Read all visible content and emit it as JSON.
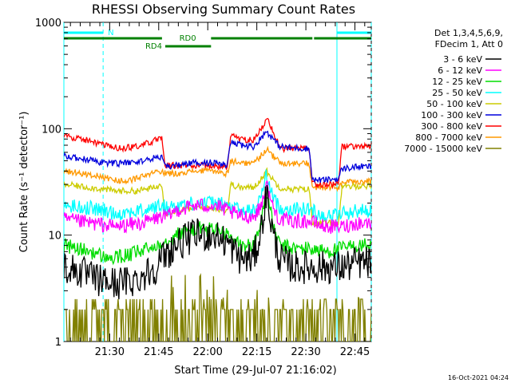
{
  "chart_data": {
    "type": "line",
    "title": "RHESSI Observing Summary Count Rates",
    "xlabel": "Start Time (29-Jul-07 21:16:02)",
    "ylabel": "Count Rate (s⁻¹ detector⁻¹)",
    "yscale": "log",
    "ylim": [
      1,
      1000
    ],
    "y_ticks": [
      {
        "value": 1,
        "label": "1"
      },
      {
        "value": 10,
        "label": "10"
      },
      {
        "value": 100,
        "label": "100"
      },
      {
        "value": 1000,
        "label": "1000"
      }
    ],
    "xlim_minutes": [
      0,
      94
    ],
    "x_ticks": [
      {
        "value": 14,
        "label": "21:30"
      },
      {
        "value": 29,
        "label": "21:45"
      },
      {
        "value": 44,
        "label": "22:00"
      },
      {
        "value": 59,
        "label": "22:15"
      },
      {
        "value": 74,
        "label": "22:30"
      },
      {
        "value": 89,
        "label": "22:45"
      }
    ],
    "legend_header": [
      "Det 1,3,4,5,6,9,",
      "FDecim 1, Att 0"
    ],
    "series": [
      {
        "name": "3 - 6 keV",
        "color": "#000000",
        "points": [
          [
            0,
            5
          ],
          [
            5,
            4.5
          ],
          [
            10,
            3.8
          ],
          [
            16,
            3.5
          ],
          [
            22,
            3.8
          ],
          [
            28,
            5
          ],
          [
            30,
            6
          ],
          [
            34,
            8
          ],
          [
            40,
            10
          ],
          [
            46,
            10
          ],
          [
            50,
            8.5
          ],
          [
            54,
            6
          ],
          [
            58,
            6
          ],
          [
            60,
            10
          ],
          [
            62,
            25
          ],
          [
            64,
            10
          ],
          [
            66,
            6
          ],
          [
            70,
            5
          ],
          [
            75,
            5
          ],
          [
            80,
            5
          ],
          [
            85,
            5
          ],
          [
            90,
            5.5
          ],
          [
            94,
            5.5
          ]
        ]
      },
      {
        "name": "6 - 12 keV",
        "color": "#ff00ff",
        "points": [
          [
            0,
            14
          ],
          [
            8,
            13
          ],
          [
            16,
            12
          ],
          [
            24,
            13
          ],
          [
            30,
            15
          ],
          [
            32,
            15
          ],
          [
            34,
            17
          ],
          [
            40,
            19
          ],
          [
            46,
            19
          ],
          [
            50,
            17
          ],
          [
            54,
            15
          ],
          [
            58,
            15
          ],
          [
            60,
            18
          ],
          [
            62,
            30
          ],
          [
            64,
            18
          ],
          [
            66,
            14
          ],
          [
            70,
            13.5
          ],
          [
            75,
            13.5
          ],
          [
            80,
            12
          ],
          [
            85,
            12
          ],
          [
            90,
            13
          ],
          [
            94,
            13
          ]
        ]
      },
      {
        "name": "12 - 25 keV",
        "color": "#00dd00",
        "points": [
          [
            0,
            8
          ],
          [
            8,
            7
          ],
          [
            14,
            6
          ],
          [
            20,
            6.5
          ],
          [
            26,
            7.5
          ],
          [
            30,
            8.5
          ],
          [
            34,
            10
          ],
          [
            40,
            11.5
          ],
          [
            46,
            11.5
          ],
          [
            50,
            10
          ],
          [
            54,
            8
          ],
          [
            58,
            8
          ],
          [
            60,
            12
          ],
          [
            62,
            27
          ],
          [
            64,
            12
          ],
          [
            66,
            8
          ],
          [
            70,
            7.5
          ],
          [
            75,
            7.5
          ],
          [
            80,
            7
          ],
          [
            85,
            7.5
          ],
          [
            90,
            8
          ],
          [
            94,
            8
          ]
        ]
      },
      {
        "name": "25 - 50 keV",
        "color": "#00ffff",
        "points": [
          [
            0,
            19
          ],
          [
            8,
            18
          ],
          [
            16,
            16
          ],
          [
            24,
            17
          ],
          [
            30,
            19
          ],
          [
            32,
            18
          ],
          [
            34,
            19
          ],
          [
            40,
            20
          ],
          [
            46,
            20
          ],
          [
            50,
            19
          ],
          [
            54,
            17
          ],
          [
            58,
            17
          ],
          [
            60,
            22
          ],
          [
            62,
            37
          ],
          [
            64,
            22
          ],
          [
            66,
            18
          ],
          [
            70,
            17.5
          ],
          [
            75,
            17.5
          ],
          [
            80,
            15
          ],
          [
            85,
            16
          ],
          [
            90,
            17
          ],
          [
            94,
            17
          ]
        ]
      },
      {
        "name": "50 - 100 keV",
        "color": "#cccc00",
        "points": [
          [
            0,
            30
          ],
          [
            8,
            28
          ],
          [
            16,
            26
          ],
          [
            22,
            26
          ],
          [
            28,
            28
          ],
          [
            30,
            30
          ],
          [
            31,
            16
          ],
          [
            34,
            17
          ],
          [
            40,
            18
          ],
          [
            46,
            18
          ],
          [
            50,
            17
          ],
          [
            51,
            30
          ],
          [
            54,
            28
          ],
          [
            58,
            28
          ],
          [
            60,
            33
          ],
          [
            62,
            40
          ],
          [
            64,
            33
          ],
          [
            66,
            28
          ],
          [
            70,
            27
          ],
          [
            75,
            27
          ],
          [
            76,
            13
          ],
          [
            80,
            13
          ],
          [
            84,
            13
          ],
          [
            85,
            28
          ],
          [
            90,
            29
          ],
          [
            94,
            29
          ]
        ]
      },
      {
        "name": "100 - 300 keV",
        "color": "#0000dd",
        "points": [
          [
            0,
            55
          ],
          [
            6,
            52
          ],
          [
            12,
            48
          ],
          [
            18,
            47
          ],
          [
            24,
            50
          ],
          [
            30,
            55
          ],
          [
            31,
            43
          ],
          [
            34,
            45
          ],
          [
            40,
            48
          ],
          [
            46,
            48
          ],
          [
            50,
            45
          ],
          [
            51,
            75
          ],
          [
            54,
            70
          ],
          [
            58,
            68
          ],
          [
            60,
            80
          ],
          [
            62,
            95
          ],
          [
            64,
            80
          ],
          [
            66,
            68
          ],
          [
            70,
            66
          ],
          [
            75,
            65
          ],
          [
            76,
            33
          ],
          [
            80,
            33
          ],
          [
            84,
            34
          ],
          [
            85,
            42
          ],
          [
            90,
            44
          ],
          [
            94,
            44
          ]
        ]
      },
      {
        "name": "300 - 800 keV",
        "color": "#ff0000",
        "points": [
          [
            0,
            85
          ],
          [
            6,
            80
          ],
          [
            12,
            70
          ],
          [
            18,
            65
          ],
          [
            24,
            70
          ],
          [
            28,
            78
          ],
          [
            30,
            80
          ],
          [
            31,
            45
          ],
          [
            34,
            45
          ],
          [
            40,
            45
          ],
          [
            46,
            45
          ],
          [
            50,
            43
          ],
          [
            51,
            88
          ],
          [
            54,
            80
          ],
          [
            58,
            78
          ],
          [
            60,
            95
          ],
          [
            62,
            125
          ],
          [
            64,
            95
          ],
          [
            66,
            65
          ],
          [
            70,
            65
          ],
          [
            75,
            65
          ],
          [
            76,
            30
          ],
          [
            80,
            30
          ],
          [
            84,
            30
          ],
          [
            85,
            68
          ],
          [
            90,
            68
          ],
          [
            94,
            68
          ]
        ]
      },
      {
        "name": "800 - 7000 keV",
        "color": "#ff9900",
        "points": [
          [
            0,
            40
          ],
          [
            6,
            38
          ],
          [
            12,
            35
          ],
          [
            18,
            32
          ],
          [
            24,
            35
          ],
          [
            28,
            39
          ],
          [
            30,
            40
          ],
          [
            31,
            38
          ],
          [
            34,
            38
          ],
          [
            40,
            40
          ],
          [
            46,
            40
          ],
          [
            50,
            38
          ],
          [
            51,
            50
          ],
          [
            54,
            48
          ],
          [
            58,
            47
          ],
          [
            60,
            55
          ],
          [
            62,
            65
          ],
          [
            64,
            55
          ],
          [
            66,
            48
          ],
          [
            70,
            47
          ],
          [
            75,
            47
          ],
          [
            76,
            28
          ],
          [
            80,
            28
          ],
          [
            84,
            28
          ],
          [
            85,
            31
          ],
          [
            90,
            32
          ],
          [
            94,
            32
          ]
        ]
      },
      {
        "name": "7000 - 15000 keV",
        "color": "#808000",
        "points": [
          [
            0,
            2
          ],
          [
            8,
            1.5
          ],
          [
            16,
            1
          ],
          [
            22,
            1.5
          ],
          [
            28,
            1.5
          ],
          [
            30,
            2
          ],
          [
            34,
            2.5
          ],
          [
            40,
            2.5
          ],
          [
            46,
            2.5
          ],
          [
            50,
            2
          ],
          [
            54,
            1.5
          ],
          [
            58,
            1.5
          ],
          [
            60,
            2.5
          ],
          [
            62,
            3.8
          ],
          [
            64,
            2.5
          ],
          [
            66,
            1.5
          ],
          [
            70,
            1.5
          ],
          [
            75,
            1.5
          ],
          [
            80,
            1.5
          ],
          [
            85,
            1.5
          ],
          [
            90,
            1.5
          ],
          [
            94,
            1.5
          ]
        ]
      }
    ],
    "annotations": [
      {
        "label": "N",
        "color": "#00ffff",
        "kind": "night",
        "segments": [
          [
            0,
            12
          ],
          [
            83.5,
            94
          ]
        ]
      },
      {
        "label": "RD0",
        "color": "#008000",
        "kind": "segment",
        "segments": [
          [
            0,
            30
          ],
          [
            45,
            76
          ],
          [
            76.5,
            84
          ],
          [
            84,
            94
          ]
        ]
      },
      {
        "label": "RD4",
        "color": "#008000",
        "kind": "segment",
        "segments": [
          [
            31,
            45
          ]
        ]
      }
    ],
    "vertical_markers": [
      {
        "at": 0,
        "style": "solid",
        "color": "#00ffff"
      },
      {
        "at": 12,
        "style": "dashed",
        "color": "#00ffff"
      },
      {
        "at": 83.5,
        "style": "solid",
        "color": "#00ffff"
      },
      {
        "at": 94,
        "style": "dashed",
        "color": "#00ffff"
      }
    ]
  },
  "footer": {
    "timestamp": "16-Oct-2021 04:24"
  }
}
